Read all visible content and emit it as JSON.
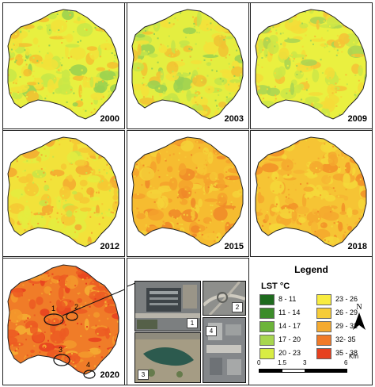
{
  "panels": [
    {
      "year": "2000",
      "palette": [
        "#e8f040",
        "#c8e848",
        "#f2e23a",
        "#f4c030",
        "#98d050"
      ]
    },
    {
      "year": "2003",
      "palette": [
        "#e4ee40",
        "#c4e44a",
        "#f4e03a",
        "#f2c232",
        "#9ad052"
      ]
    },
    {
      "year": "2009",
      "palette": [
        "#eaf040",
        "#cce648",
        "#f4dc38",
        "#f6c236",
        "#a8d454"
      ]
    },
    {
      "year": "2012",
      "palette": [
        "#f2e23a",
        "#e4ec40",
        "#f6c834",
        "#f4a830",
        "#c8e448"
      ]
    },
    {
      "year": "2015",
      "palette": [
        "#f6bc30",
        "#f5a22c",
        "#f4d238",
        "#f08828",
        "#f6c634"
      ]
    },
    {
      "year": "2018",
      "palette": [
        "#f6c434",
        "#f4a82e",
        "#f4d83a",
        "#f29028",
        "#f6b632"
      ]
    },
    {
      "year": "2020",
      "palette": [
        "#f07c28",
        "#ec5a22",
        "#f39a2c",
        "#e8401e",
        "#f4b032"
      ]
    }
  ],
  "site_labels": [
    "1",
    "2",
    "3",
    "4"
  ],
  "legend": {
    "title": "Legend",
    "header": "LST  °C",
    "classes": [
      {
        "label": "8 - 11",
        "color": "#1e6b1e"
      },
      {
        "label": "11 - 14",
        "color": "#3c8c2a"
      },
      {
        "label": "14 - 17",
        "color": "#6cb43a"
      },
      {
        "label": "17 - 20",
        "color": "#a8d650"
      },
      {
        "label": "20 - 23",
        "color": "#d8ec44"
      },
      {
        "label": "23 - 26",
        "color": "#f8ec40"
      },
      {
        "label": "26 - 29",
        "color": "#f6cc38"
      },
      {
        "label": "29 - 32",
        "color": "#f4aa30"
      },
      {
        "label": "32- 35",
        "color": "#f07a28"
      },
      {
        "label": "35 - 38",
        "color": "#e6401e"
      }
    ]
  },
  "scale_bar": {
    "ticks": [
      "0",
      "1.5",
      "3",
      "6"
    ],
    "unit": "Km"
  },
  "north_label": "N"
}
